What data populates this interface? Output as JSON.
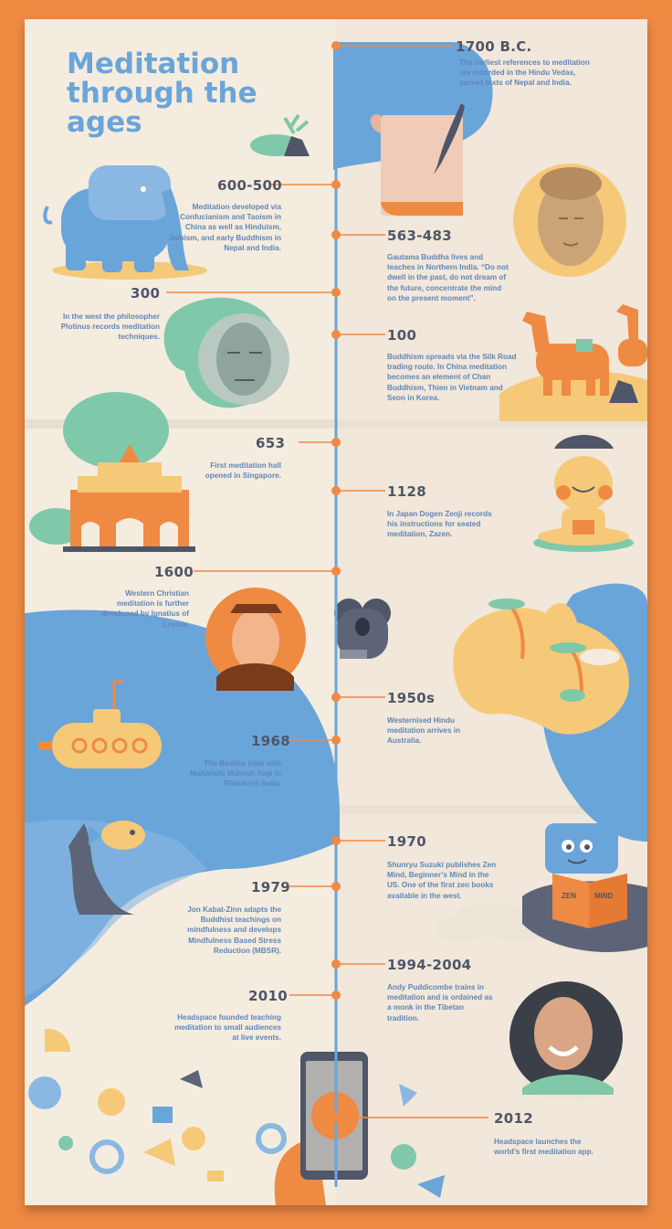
{
  "title": "Meditation through the ages",
  "colors": {
    "background": "#ef8a43",
    "paper": "#f4ecdf",
    "title": "#6aa5da",
    "year": "#4f5668",
    "description": "#5f86b8",
    "timeline": "#ef8a43",
    "axis": "#6aa5da"
  },
  "events": [
    {
      "year": "1700 B.C.",
      "text": "The earliest references to meditation are recorded in the Hindu Vedas, sacred texts of Nepal and India.",
      "illustration": "scroll-and-quill-icon"
    },
    {
      "year": "600-500",
      "text": "Meditation developed via Confucianism and Taoism in China as well as Hinduism, Jainism, and early Buddhism in Nepal and India.",
      "illustration": "elephant-icon"
    },
    {
      "year": "563-483",
      "text": "Gautama Buddha lives and teaches in Northern India. “Do not dwell in the past, do not dream of the future, concentrate the mind on the present moment”.",
      "illustration": "buddha-statue-portrait"
    },
    {
      "year": "300",
      "text": "In the west the philosopher Plotinus records meditation techniques.",
      "illustration": "plotinus-bust-portrait"
    },
    {
      "year": "100",
      "text": "Buddhism spreads via the Silk Road trading route. In China meditation becomes an element of Chan Buddhism, Thien in Vietnam and Seon in Korea.",
      "illustration": "camels-icon"
    },
    {
      "year": "653",
      "text": "First meditation hall opened in Singapore.",
      "illustration": "meditation-hall-icon"
    },
    {
      "year": "1128",
      "text": "In Japan Dogen Zenji records his instructions for seated meditation, Zazen.",
      "illustration": "meditating-monk-icon"
    },
    {
      "year": "1600",
      "text": "Western Christian meditation is further developed by Ignatius of Loyola.",
      "illustration": "ignatius-portrait"
    },
    {
      "year": "1950s",
      "text": "Westernised Hindu meditation arrives in Australia.",
      "illustration": "australia-map-icon"
    },
    {
      "year": "1968",
      "text": "The Beatles train with Maharishi Mahesh Yogi in Rishikesh India.",
      "illustration": "yellow-submarine-icon"
    },
    {
      "year": "1970",
      "text": "Shunryu Suzuki publishes Zen Mind, Beginner’s Mind in the US. One of the first zen books available in the west.",
      "illustration": "reading-character-icon"
    },
    {
      "year": "1979",
      "text": "Jon Kabat-Zinn adapts the Buddhist teachings on mindfulness and develops Mindfulness Based Stress Reduction (MBSR).",
      "illustration": "fish-coral-icon"
    },
    {
      "year": "1994-2004",
      "text": "Andy Puddicombe trains in meditation and is ordained as a monk in the Tibetan tradition.",
      "illustration": "andy-puddicombe-portrait"
    },
    {
      "year": "2010",
      "text": "Headspace founded teaching meditation to small audiences at live events.",
      "illustration": "confetti-shapes-icon"
    },
    {
      "year": "2012",
      "text": "Headspace launches the world’s first meditation app.",
      "illustration": "phone-app-icon"
    }
  ],
  "book": {
    "left": "ZEN",
    "right": "MIND"
  }
}
